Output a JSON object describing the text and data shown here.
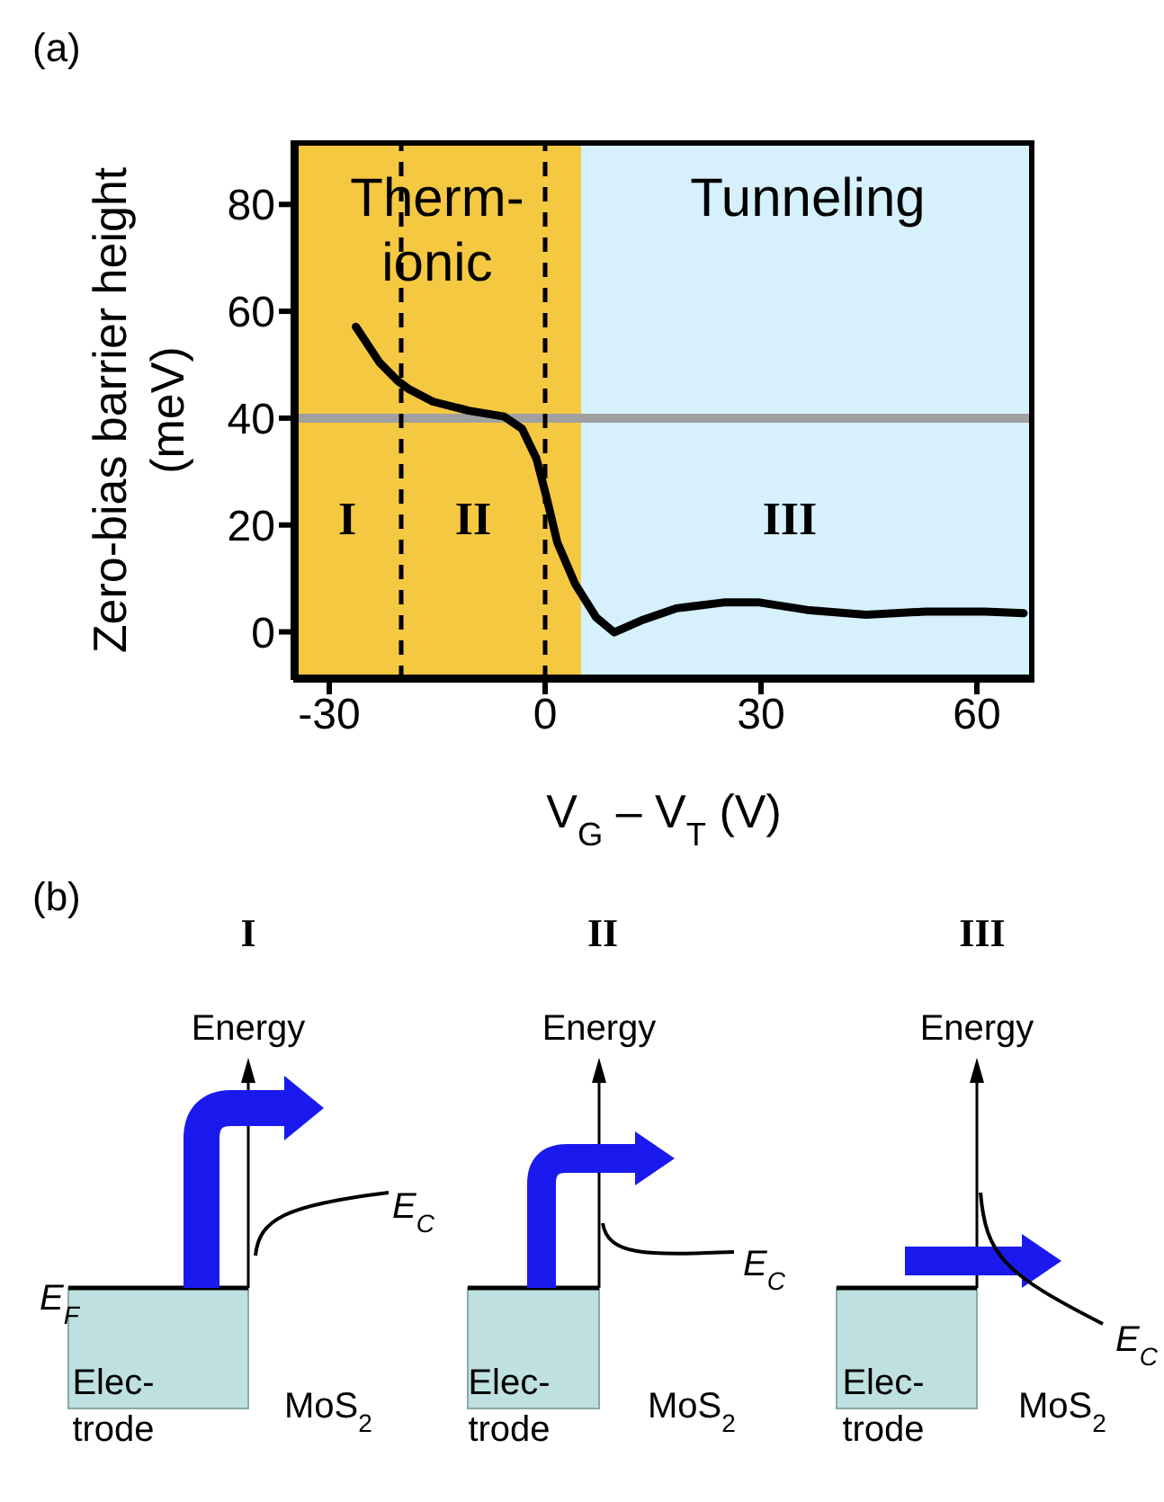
{
  "chart_data": [
    {
      "type": "line",
      "title": "(a)",
      "xlabel": "V$_{G}$ – V$_{T}$ (V)",
      "ylabel": "Zero-bias barrier height (meV)",
      "xlim": [
        -35,
        68
      ],
      "ylim": [
        -9,
        92
      ],
      "xticks": [
        -30,
        0,
        30,
        60
      ],
      "yticks": [
        0,
        20,
        40,
        60,
        80
      ],
      "marker": "none",
      "line_style": "solid",
      "series": [
        {
          "color": "#000000",
          "x": [
            -26.3,
            -23.0,
            -20.5,
            -18.9,
            -15.6,
            -10.6,
            -5.7,
            -3.2,
            -1.2,
            0.1,
            1.7,
            4.2,
            7.1,
            9.6,
            13.3,
            18.2,
            24.8,
            29.8,
            36.4,
            44.6,
            52.9,
            61.1,
            66.5
          ],
          "values": [
            57.1,
            50.4,
            47.0,
            45.4,
            43.1,
            41.4,
            40.3,
            38.0,
            32.4,
            25.7,
            16.7,
            8.9,
            2.7,
            -0.1,
            2.1,
            4.4,
            5.5,
            5.5,
            4.1,
            3.2,
            3.8,
            3.8,
            3.5
          ]
        }
      ],
      "ref_lines": [
        {
          "axis": "y",
          "value": 40,
          "color": "#a0a0a0",
          "line_style": "solid"
        },
        {
          "axis": "x",
          "value": -20,
          "color": "#000000",
          "line_style": "dashed"
        },
        {
          "axis": "x",
          "value": 0,
          "color": "#000000",
          "line_style": "dashed"
        }
      ],
      "bands": [
        {
          "axis": "x",
          "from": -35,
          "to": 5,
          "label": "Therm-\nionic",
          "color": "#f5c842"
        },
        {
          "axis": "x",
          "from": 5,
          "to": 68,
          "label": "Tunneling",
          "color": "#d6f1fb"
        }
      ],
      "annotations": [
        "I",
        "II",
        "III"
      ]
    },
    {
      "type": "other",
      "title": "(b)",
      "annotations": [
        "I",
        "II",
        "III",
        "Energy",
        "Energy",
        "Energy",
        "E$_{C}$",
        "E$_{C}$",
        "E$_{C}$",
        "E$_{F}$",
        "Elec-\ntrode",
        "Elec-\ntrode",
        "Elec-\ntrode",
        "MoS$_{2}$",
        "MoS$_{2}$",
        "MoS$_{2}$"
      ]
    }
  ]
}
